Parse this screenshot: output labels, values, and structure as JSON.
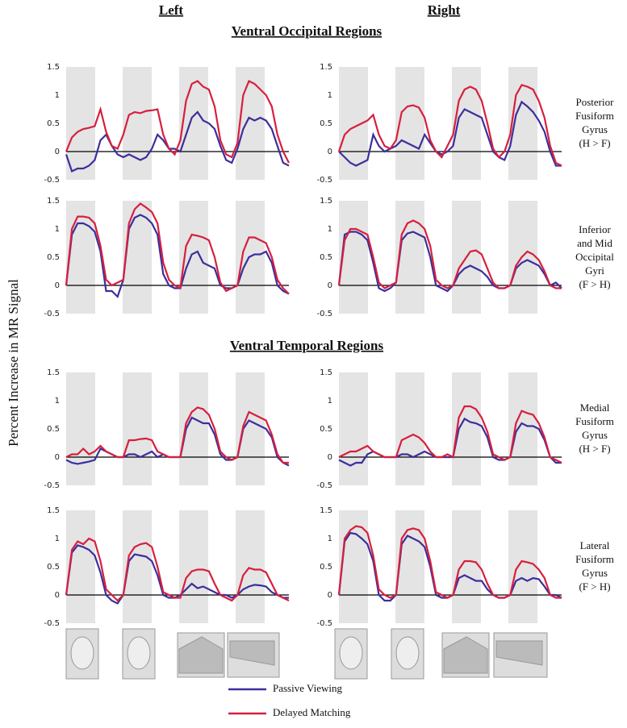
{
  "header": {
    "left": "Left",
    "right": "Right"
  },
  "sections": [
    "Ventral Occipital Regions",
    "Ventral Temporal Regions"
  ],
  "ylabel": "Percent Increase in MR Signal",
  "legend": [
    {
      "name": "Passive Viewing",
      "color": "#3b2f9c"
    },
    {
      "name": "Delayed Matching",
      "color": "#d71f3e"
    }
  ],
  "chart_data": [
    {
      "type": "line",
      "ylim": [
        -0.5,
        1.5
      ],
      "yticks": [
        -0.5,
        0,
        0.5,
        1,
        1.5
      ],
      "series": [
        {
          "values": [
            -0.05,
            -0.35,
            -0.3,
            -0.3,
            -0.25,
            -0.15,
            0.2,
            0.3,
            0.1,
            -0.05,
            -0.1,
            -0.05,
            -0.1,
            -0.15,
            -0.1,
            0.05,
            0.3,
            0.2,
            0.05,
            0.05,
            0,
            0.3,
            0.6,
            0.7,
            0.55,
            0.5,
            0.4,
            0.1,
            -0.15,
            -0.2,
            0.05,
            0.4,
            0.6,
            0.55,
            0.6,
            0.55,
            0.4,
            0.1,
            -0.2,
            -0.25
          ]
        },
        {
          "values": [
            0,
            0.25,
            0.35,
            0.4,
            0.42,
            0.45,
            0.75,
            0.35,
            0.1,
            0.05,
            0.3,
            0.65,
            0.7,
            0.68,
            0.72,
            0.73,
            0.75,
            0.3,
            0.05,
            -0.05,
            0.2,
            0.9,
            1.2,
            1.25,
            1.15,
            1.1,
            0.8,
            0.2,
            -0.05,
            -0.1,
            0.15,
            1.0,
            1.25,
            1.2,
            1.1,
            1.0,
            0.8,
            0.3,
            0,
            -0.2
          ]
        }
      ]
    },
    {
      "type": "line",
      "ylim": [
        -0.5,
        1.5
      ],
      "yticks": [
        -0.5,
        0,
        0.5,
        1,
        1.5
      ],
      "annotation": [
        "Posterior",
        "Fusiform",
        "Gyrus",
        "(H > F)"
      ],
      "series": [
        {
          "values": [
            0,
            -0.1,
            -0.2,
            -0.25,
            -0.2,
            -0.15,
            0.3,
            0.1,
            0,
            0.05,
            0.1,
            0.2,
            0.15,
            0.1,
            0.05,
            0.3,
            0.15,
            0,
            -0.05,
            0,
            0.1,
            0.6,
            0.75,
            0.7,
            0.65,
            0.6,
            0.3,
            0,
            -0.1,
            -0.15,
            0.1,
            0.65,
            0.88,
            0.8,
            0.7,
            0.55,
            0.35,
            0,
            -0.25,
            -0.25
          ]
        },
        {
          "values": [
            0,
            0.3,
            0.4,
            0.45,
            0.5,
            0.55,
            0.65,
            0.3,
            0.1,
            0.05,
            0.2,
            0.7,
            0.8,
            0.82,
            0.78,
            0.6,
            0.2,
            0,
            -0.1,
            0.1,
            0.3,
            0.9,
            1.1,
            1.15,
            1.1,
            0.9,
            0.5,
            0.05,
            -0.1,
            0,
            0.3,
            1.0,
            1.18,
            1.15,
            1.1,
            0.9,
            0.6,
            0.1,
            -0.2,
            -0.25
          ]
        }
      ]
    },
    {
      "type": "line",
      "ylim": [
        -0.5,
        1.5
      ],
      "yticks": [
        -0.5,
        0,
        0.5,
        1,
        1.5
      ],
      "series": [
        {
          "values": [
            0,
            0.9,
            1.1,
            1.1,
            1.05,
            0.95,
            0.6,
            -0.1,
            -0.1,
            -0.2,
            0.1,
            1.0,
            1.2,
            1.25,
            1.2,
            1.1,
            0.9,
            0.2,
            0,
            -0.05,
            -0.05,
            0.3,
            0.55,
            0.6,
            0.4,
            0.35,
            0.3,
            0,
            -0.05,
            -0.05,
            0,
            0.3,
            0.5,
            0.55,
            0.55,
            0.6,
            0.4,
            0,
            -0.1,
            -0.15
          ]
        },
        {
          "values": [
            0,
            1.0,
            1.22,
            1.22,
            1.2,
            1.1,
            0.7,
            0.1,
            0,
            0.05,
            0.1,
            1.1,
            1.35,
            1.45,
            1.38,
            1.3,
            1.1,
            0.4,
            0.1,
            0,
            -0.05,
            0.7,
            0.9,
            0.88,
            0.85,
            0.8,
            0.5,
            0.05,
            -0.1,
            -0.05,
            0,
            0.6,
            0.85,
            0.85,
            0.8,
            0.75,
            0.5,
            0.1,
            -0.05,
            -0.15
          ]
        }
      ]
    },
    {
      "type": "line",
      "ylim": [
        -0.5,
        1.5
      ],
      "yticks": [
        -0.5,
        0,
        0.5,
        1,
        1.5
      ],
      "annotation": [
        "Inferior",
        "and Mid",
        "Occipital",
        "Gyri",
        "(F > H)"
      ],
      "series": [
        {
          "values": [
            0,
            0.9,
            0.95,
            0.95,
            0.9,
            0.8,
            0.4,
            -0.05,
            -0.1,
            -0.05,
            0.05,
            0.8,
            0.92,
            0.95,
            0.9,
            0.85,
            0.5,
            0,
            -0.05,
            -0.1,
            0,
            0.2,
            0.3,
            0.35,
            0.3,
            0.25,
            0.15,
            0,
            -0.05,
            -0.05,
            0,
            0.3,
            0.4,
            0.45,
            0.4,
            0.35,
            0.2,
            0,
            0.05,
            -0.05
          ]
        },
        {
          "values": [
            0,
            0.8,
            1.0,
            1.0,
            0.95,
            0.9,
            0.5,
            0.05,
            -0.05,
            0,
            0.05,
            0.9,
            1.1,
            1.15,
            1.1,
            1.0,
            0.7,
            0.1,
            0,
            -0.05,
            0,
            0.3,
            0.45,
            0.6,
            0.62,
            0.55,
            0.3,
            0.05,
            -0.05,
            -0.05,
            0,
            0.35,
            0.5,
            0.6,
            0.55,
            0.45,
            0.25,
            0,
            -0.05,
            -0.05
          ]
        }
      ]
    },
    {
      "type": "line",
      "ylim": [
        -0.5,
        1.5
      ],
      "yticks": [
        -0.5,
        0,
        0.5,
        1,
        1.5
      ],
      "series": [
        {
          "values": [
            -0.05,
            -0.1,
            -0.12,
            -0.1,
            -0.08,
            -0.05,
            0.15,
            0.1,
            0.05,
            0,
            0,
            0.05,
            0.05,
            0,
            0.05,
            0.1,
            0,
            0.05,
            0,
            0,
            0,
            0.5,
            0.7,
            0.65,
            0.6,
            0.6,
            0.4,
            0.05,
            -0.05,
            -0.05,
            0,
            0.5,
            0.65,
            0.6,
            0.55,
            0.5,
            0.35,
            0,
            -0.1,
            -0.15
          ]
        },
        {
          "values": [
            0,
            0.05,
            0.05,
            0.15,
            0.05,
            0.1,
            0.2,
            0.1,
            0.05,
            0,
            0,
            0.3,
            0.3,
            0.32,
            0.33,
            0.3,
            0.1,
            0.05,
            0,
            0,
            0,
            0.6,
            0.8,
            0.88,
            0.85,
            0.75,
            0.5,
            0.1,
            0,
            -0.05,
            0,
            0.55,
            0.8,
            0.75,
            0.7,
            0.65,
            0.4,
            0.05,
            -0.1,
            -0.1
          ]
        }
      ]
    },
    {
      "type": "line",
      "ylim": [
        -0.5,
        1.5
      ],
      "yticks": [
        -0.5,
        0,
        0.5,
        1,
        1.5
      ],
      "annotation": [
        "Medial",
        "Fusiform",
        "Gyrus",
        "(H > F)"
      ],
      "series": [
        {
          "values": [
            -0.05,
            -0.1,
            -0.15,
            -0.1,
            -0.1,
            0.05,
            0.1,
            0.05,
            0,
            0,
            0,
            0.05,
            0.05,
            0,
            0.05,
            0.1,
            0.05,
            0,
            0,
            0,
            0,
            0.5,
            0.68,
            0.62,
            0.6,
            0.55,
            0.35,
            0,
            -0.05,
            -0.05,
            0,
            0.45,
            0.6,
            0.55,
            0.55,
            0.5,
            0.3,
            0,
            -0.1,
            -0.1
          ]
        },
        {
          "values": [
            0,
            0.05,
            0.1,
            0.1,
            0.15,
            0.2,
            0.1,
            0.05,
            0,
            0,
            0,
            0.3,
            0.35,
            0.4,
            0.35,
            0.25,
            0.1,
            0,
            0,
            0.05,
            0,
            0.7,
            0.9,
            0.9,
            0.85,
            0.7,
            0.45,
            0.05,
            0,
            -0.05,
            0,
            0.6,
            0.82,
            0.78,
            0.75,
            0.6,
            0.35,
            0,
            -0.05,
            -0.1
          ]
        }
      ]
    },
    {
      "type": "line",
      "ylim": [
        -0.5,
        1.5
      ],
      "yticks": [
        -0.5,
        0,
        0.5,
        1,
        1.5
      ],
      "series": [
        {
          "values": [
            0,
            0.75,
            0.88,
            0.85,
            0.8,
            0.7,
            0.4,
            0,
            -0.1,
            -0.15,
            0,
            0.6,
            0.72,
            0.7,
            0.68,
            0.6,
            0.35,
            0,
            -0.05,
            -0.05,
            0,
            0.1,
            0.2,
            0.12,
            0.15,
            0.1,
            0.05,
            0,
            0,
            -0.05,
            0,
            0.1,
            0.15,
            0.18,
            0.17,
            0.15,
            0.05,
            0,
            -0.05,
            -0.05
          ]
        },
        {
          "values": [
            0,
            0.8,
            0.95,
            0.9,
            1.0,
            0.95,
            0.6,
            0.1,
            0,
            -0.1,
            0,
            0.7,
            0.85,
            0.9,
            0.92,
            0.85,
            0.5,
            0.05,
            0,
            -0.05,
            -0.05,
            0.3,
            0.42,
            0.45,
            0.45,
            0.42,
            0.2,
            0,
            -0.05,
            -0.1,
            0,
            0.35,
            0.48,
            0.45,
            0.45,
            0.4,
            0.2,
            0,
            -0.05,
            -0.1
          ]
        }
      ]
    },
    {
      "type": "line",
      "ylim": [
        -0.5,
        1.5
      ],
      "yticks": [
        -0.5,
        0,
        0.5,
        1,
        1.5
      ],
      "annotation": [
        "Lateral",
        "Fusiform",
        "Gyrus",
        "(F > H)"
      ],
      "series": [
        {
          "values": [
            0,
            0.95,
            1.1,
            1.08,
            1.0,
            0.9,
            0.6,
            0,
            -0.1,
            -0.1,
            0,
            0.9,
            1.05,
            1.0,
            0.95,
            0.85,
            0.5,
            0,
            -0.05,
            -0.05,
            0,
            0.3,
            0.35,
            0.3,
            0.25,
            0.25,
            0.1,
            0,
            -0.05,
            -0.05,
            0,
            0.25,
            0.3,
            0.25,
            0.3,
            0.28,
            0.15,
            0,
            0,
            -0.05
          ]
        },
        {
          "values": [
            0,
            1.0,
            1.15,
            1.22,
            1.2,
            1.1,
            0.7,
            0.1,
            0,
            -0.05,
            0,
            1.0,
            1.15,
            1.18,
            1.15,
            1.0,
            0.6,
            0.05,
            0,
            -0.05,
            0,
            0.45,
            0.6,
            0.6,
            0.58,
            0.45,
            0.2,
            0,
            -0.05,
            -0.05,
            0,
            0.45,
            0.6,
            0.58,
            0.55,
            0.45,
            0.3,
            0,
            -0.05,
            -0.05
          ]
        }
      ]
    }
  ]
}
